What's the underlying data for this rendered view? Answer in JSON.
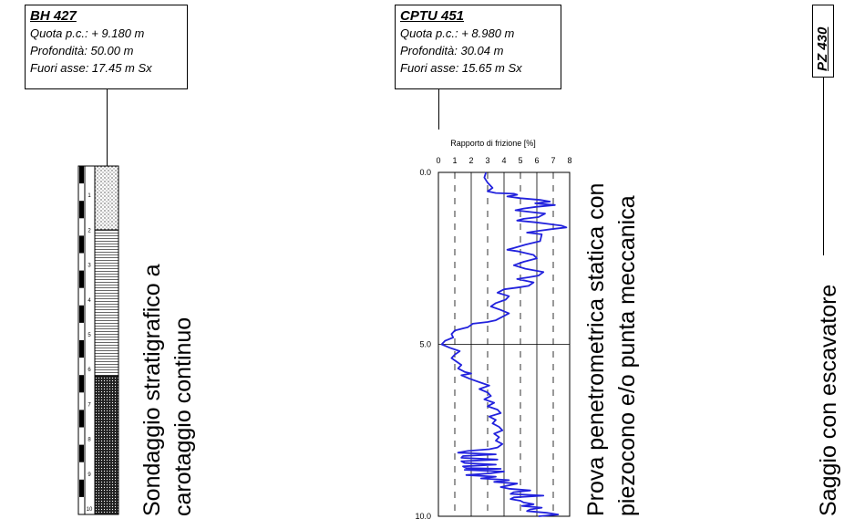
{
  "bh": {
    "title": "BH 427",
    "quota": "Quota p.c.: + 9.180 m",
    "profondita": "Profondità: 50.00 m",
    "fuori_asse": "Fuori asse: 17.45 m Sx",
    "label_line1": "Sondaggio stratigrafico a",
    "label_line2": "carotaggio continuo",
    "scale_ticks": [
      "1",
      "2",
      "3",
      "4",
      "5",
      "6",
      "7",
      "8",
      "9",
      "10"
    ]
  },
  "cptu": {
    "title": "CPTU 451",
    "quota": "Quota p.c.: + 8.980 m",
    "profondita": "Profondità: 30.04 m",
    "fuori_asse": "Fuori asse: 15.65 m Sx",
    "label_line1": "Prova penetrometrica statica con",
    "label_line2": "piezocono e/o punta meccanica"
  },
  "pz": {
    "title": "PZ 430",
    "label": "Saggio con escavatore"
  },
  "chart_data": {
    "type": "line",
    "title": "Rapporto di frizione [%]",
    "x_ticks": [
      "0",
      "1",
      "2",
      "3",
      "4",
      "5",
      "6",
      "7",
      "8"
    ],
    "y_ticks": [
      "0.0",
      "5.0",
      "10.0"
    ],
    "xlim": [
      0,
      8
    ],
    "ylim": [
      0,
      10
    ],
    "y_inverted": true,
    "grid": true,
    "colors": {
      "line": "#2222dd"
    },
    "series": [
      {
        "x": [
          2.9,
          2.8,
          3.0,
          3.3,
          3.0,
          3.5,
          4.6,
          4.8,
          4.2,
          5.0,
          6.2,
          6.8,
          5.9,
          6.3,
          7.1,
          6.0,
          5.2,
          4.7,
          5.6,
          6.5,
          6.1,
          5.2,
          4.8,
          5.9,
          6.7,
          7.5,
          7.8,
          6.9,
          6.1,
          5.4,
          6.3,
          6.2,
          5.3,
          4.6,
          4.2,
          4.9,
          5.8,
          6.0,
          5.2,
          4.6,
          5.3,
          6.4,
          6.1,
          5.5,
          4.8,
          5.8,
          5.5,
          4.8,
          4.0,
          3.6,
          4.3,
          4.1,
          3.5,
          3.2,
          3.8,
          4.3,
          3.9,
          3.5,
          3.0,
          2.1,
          1.8,
          1.0,
          0.8,
          0.9,
          0.4,
          0.2,
          0.7,
          1.3,
          1.0,
          0.8,
          1.1,
          1.4,
          1.2,
          1.6,
          2.0,
          1.4,
          1.9,
          2.5,
          3.1,
          2.5,
          3.0,
          3.2,
          2.8,
          3.4,
          3.0,
          3.6,
          3.8,
          3.1,
          3.5,
          3.3,
          3.7,
          3.9,
          3.4,
          3.7,
          3.5,
          3.9,
          3.6,
          3.1,
          1.8,
          1.2,
          3.5,
          1.5,
          1.4,
          3.6,
          1.4,
          1.6,
          3.5,
          1.5,
          1.7,
          3.8,
          1.6,
          4.0,
          3.2,
          1.7,
          3.5,
          2.6,
          4.3,
          3.4,
          4.8,
          4.3,
          3.8,
          4.3,
          5.6,
          4.6,
          4.4,
          6.4,
          4.6,
          4.4,
          5.0,
          5.2,
          5.8,
          5.1,
          6.3,
          5.6,
          5.4,
          6.6,
          7.3,
          6.1
        ],
        "y": [
          0.0,
          0.15,
          0.3,
          0.45,
          0.55,
          0.6,
          0.62,
          0.65,
          0.7,
          0.75,
          0.8,
          0.85,
          0.9,
          0.92,
          0.95,
          1.0,
          1.05,
          1.1,
          1.15,
          1.2,
          1.3,
          1.35,
          1.4,
          1.45,
          1.5,
          1.55,
          1.6,
          1.65,
          1.7,
          1.75,
          1.8,
          2.0,
          2.1,
          2.2,
          2.25,
          2.3,
          2.4,
          2.5,
          2.6,
          2.7,
          2.8,
          2.9,
          3.0,
          3.05,
          3.1,
          3.2,
          3.3,
          3.35,
          3.4,
          3.5,
          3.6,
          3.7,
          3.8,
          3.9,
          4.0,
          4.1,
          4.2,
          4.3,
          4.35,
          4.4,
          4.5,
          4.6,
          4.7,
          4.8,
          4.9,
          5.0,
          5.1,
          5.2,
          5.3,
          5.4,
          5.5,
          5.6,
          5.7,
          5.8,
          5.85,
          5.9,
          6.0,
          6.1,
          6.2,
          6.3,
          6.4,
          6.5,
          6.6,
          6.7,
          6.8,
          6.9,
          7.0,
          7.1,
          7.2,
          7.3,
          7.4,
          7.5,
          7.6,
          7.7,
          7.8,
          7.9,
          8.0,
          8.05,
          8.1,
          8.15,
          8.2,
          8.25,
          8.3,
          8.35,
          8.4,
          8.45,
          8.5,
          8.55,
          8.6,
          8.62,
          8.65,
          8.7,
          8.75,
          8.8,
          8.85,
          8.9,
          8.95,
          9.0,
          9.05,
          9.1,
          9.15,
          9.2,
          9.25,
          9.3,
          9.35,
          9.4,
          9.45,
          9.5,
          9.55,
          9.6,
          9.65,
          9.7,
          9.75,
          9.8,
          9.85,
          9.9,
          9.95,
          10.0
        ]
      }
    ]
  }
}
